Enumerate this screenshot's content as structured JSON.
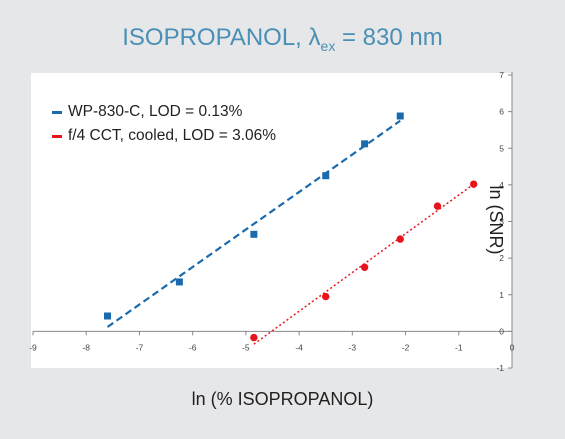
{
  "title": {
    "main": "ISOPROPANOL, λ",
    "subscript": "ex",
    "suffix": " = 830 nm"
  },
  "chart_data": {
    "type": "scatter",
    "title": "ISOPROPANOL, λex = 830 nm",
    "xlabel": "ln (% ISOPROPANOL)",
    "ylabel": "ln (SNR)",
    "xlim": [
      -9,
      0
    ],
    "ylim": [
      -1,
      7
    ],
    "x_ticks": [
      "-9",
      "-8",
      "-7",
      "-6",
      "-5",
      "-4",
      "-3",
      "-2",
      "-1",
      "0"
    ],
    "y_ticks": [
      "-1",
      "0",
      "1",
      "2",
      "3",
      "4",
      "5",
      "6",
      "7"
    ],
    "grid": false,
    "legend_position": "top-left",
    "series": [
      {
        "name": "WP-830-C, LOD = 0.13%",
        "color": "#1a6aad",
        "marker": "square",
        "trendline": "dashed",
        "x": [
          -7.6,
          -6.25,
          -4.85,
          -3.5,
          -2.77,
          -2.1
        ],
        "y": [
          0.42,
          1.35,
          2.65,
          4.25,
          5.12,
          5.88
        ],
        "trend_x": [
          -7.6,
          -2.1
        ],
        "trend_y": [
          0.12,
          5.75
        ]
      },
      {
        "name": "f/4 CCT, cooled, LOD = 3.06%",
        "color": "#e8141b",
        "marker": "circle",
        "trendline": "dotted",
        "x": [
          -4.85,
          -3.5,
          -2.77,
          -2.1,
          -1.4,
          -0.72
        ],
        "y": [
          -0.17,
          0.95,
          1.75,
          2.52,
          3.42,
          4.02
        ],
        "trend_x": [
          -4.85,
          -0.72
        ],
        "trend_y": [
          -0.35,
          4.02
        ]
      }
    ]
  }
}
